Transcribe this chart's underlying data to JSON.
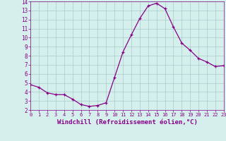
{
  "x": [
    0,
    1,
    2,
    3,
    4,
    5,
    6,
    7,
    8,
    9,
    10,
    11,
    12,
    13,
    14,
    15,
    16,
    17,
    18,
    19,
    20,
    21,
    22,
    23
  ],
  "y": [
    4.8,
    4.5,
    3.9,
    3.7,
    3.7,
    3.2,
    2.6,
    2.4,
    2.5,
    2.8,
    5.6,
    8.4,
    10.3,
    12.1,
    13.5,
    13.8,
    13.2,
    11.2,
    9.4,
    8.6,
    7.7,
    7.3,
    6.8,
    6.9
  ],
  "line_color": "#880088",
  "marker": "+",
  "marker_size": 3,
  "bg_color": "#d5f0ec",
  "grid_color": "#a8ccc8",
  "xlabel": "Windchill (Refroidissement éolien,°C)",
  "ylim": [
    2,
    14
  ],
  "xlim": [
    0,
    23
  ],
  "yticks": [
    2,
    3,
    4,
    5,
    6,
    7,
    8,
    9,
    10,
    11,
    12,
    13,
    14
  ],
  "xticks": [
    0,
    1,
    2,
    3,
    4,
    5,
    6,
    7,
    8,
    9,
    10,
    11,
    12,
    13,
    14,
    15,
    16,
    17,
    18,
    19,
    20,
    21,
    22,
    23
  ],
  "tick_color": "#880088",
  "label_color": "#880088",
  "axis_color": "#880088",
  "xlabel_fontsize": 6.5,
  "tick_fontsize_x": 5.0,
  "tick_fontsize_y": 5.5,
  "linewidth": 0.9,
  "markeredgewidth": 0.9
}
